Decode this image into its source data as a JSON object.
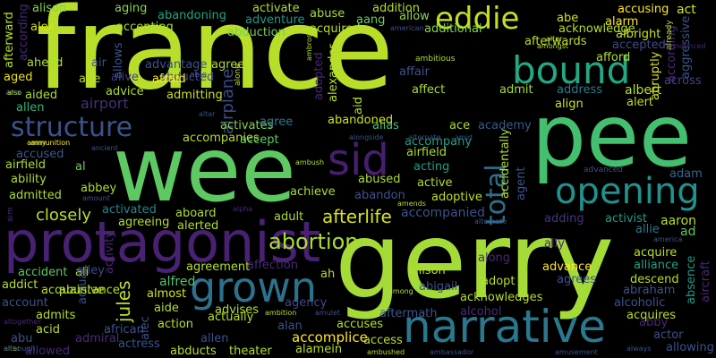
{
  "words": [
    {
      "text": "france",
      "color": "#b8de29"
    },
    {
      "text": "gerry",
      "color": "#a5db36"
    },
    {
      "text": "wee",
      "color": "#5ec962"
    },
    {
      "text": "pee",
      "color": "#44bf70"
    },
    {
      "text": "protagonist",
      "color": "#482173"
    },
    {
      "text": "narrative",
      "color": "#2a788e"
    },
    {
      "text": "grown",
      "color": "#2c728e"
    },
    {
      "text": "bound",
      "color": "#22a884"
    },
    {
      "text": "opening",
      "color": "#21918c"
    },
    {
      "text": "sid",
      "color": "#481f70"
    },
    {
      "text": "structure",
      "color": "#3b528b"
    },
    {
      "text": "eddie",
      "color": "#c2df23"
    },
    {
      "text": "total",
      "color": "#2c728e"
    },
    {
      "text": "abortion",
      "color": "#addc30"
    },
    {
      "text": "afterlife",
      "color": "#d8e219"
    },
    {
      "text": "closely",
      "color": "#b5de2b"
    },
    {
      "text": "accompanied",
      "color": "#3b528b"
    },
    {
      "text": "jules",
      "color": "#b8de29"
    },
    {
      "text": "airport",
      "color": "#472d7b"
    },
    {
      "text": "airplane",
      "color": "#3e4a89"
    },
    {
      "text": "accomplice",
      "color": "#fde725"
    },
    {
      "text": "accepting",
      "color": "#addc30"
    },
    {
      "text": "acknowledge",
      "color": "#b5de2b"
    },
    {
      "text": "afterwards",
      "color": "#bddf26"
    },
    {
      "text": "accepted",
      "color": "#3e4a89"
    },
    {
      "text": "abruptly",
      "color": "#d8e219"
    },
    {
      "text": "across",
      "color": "#414487"
    },
    {
      "text": "alcoholic",
      "color": "#3b528b"
    },
    {
      "text": "accident",
      "color": "#5ec962"
    },
    {
      "text": "alliance",
      "color": "#1fa187"
    },
    {
      "text": "alfred",
      "color": "#54c568"
    },
    {
      "text": "alison",
      "color": "#84d44b"
    },
    {
      "text": "aging",
      "color": "#86d549"
    },
    {
      "text": "abandoning",
      "color": "#20a486"
    },
    {
      "text": "activate",
      "color": "#addc30"
    },
    {
      "text": "abuse",
      "color": "#aadc32"
    },
    {
      "text": "addition",
      "color": "#b5de2b"
    },
    {
      "text": "accusing",
      "color": "#fde725"
    },
    {
      "text": "act",
      "color": "#d5e21a"
    },
    {
      "text": "alex",
      "color": "#d8e219"
    },
    {
      "text": "adventure",
      "color": "#1f9a8a"
    },
    {
      "text": "aang",
      "color": "#6ccd5a"
    },
    {
      "text": "allow",
      "color": "#8bd646"
    },
    {
      "text": "abe",
      "color": "#d2e21b"
    },
    {
      "text": "alarm",
      "color": "#fde725"
    },
    {
      "text": "albright",
      "color": "#cae11f"
    },
    {
      "text": "abduction",
      "color": "#73d056"
    },
    {
      "text": "acquired",
      "color": "#b5de2b"
    },
    {
      "text": "additional",
      "color": "#84d44b"
    },
    {
      "text": "afford",
      "color": "#b5de2b"
    },
    {
      "text": "affair",
      "color": "#3b528b"
    },
    {
      "text": "affect",
      "color": "#addc30"
    },
    {
      "text": "admit",
      "color": "#a8db34"
    },
    {
      "text": "address",
      "color": "#297b8e"
    },
    {
      "text": "albert",
      "color": "#b5de2b"
    },
    {
      "text": "alert",
      "color": "#c0df25"
    },
    {
      "text": "advantage",
      "color": "#3b528b"
    },
    {
      "text": "abducted",
      "color": "#3e4a89"
    },
    {
      "text": "align",
      "color": "#cde11d"
    },
    {
      "text": "afraid",
      "color": "#fde725"
    },
    {
      "text": "agreed",
      "color": "#addc30"
    },
    {
      "text": "admitting",
      "color": "#c8e020"
    },
    {
      "text": "aged",
      "color": "#e5e419"
    },
    {
      "text": "age",
      "color": "#bddf26"
    },
    {
      "text": "alive",
      "color": "#433e85"
    },
    {
      "text": "ahead",
      "color": "#addc30"
    },
    {
      "text": "aided",
      "color": "#aadc32"
    },
    {
      "text": "advice",
      "color": "#addc30"
    },
    {
      "text": "allen",
      "color": "#35b779"
    },
    {
      "text": "activates",
      "color": "#84d44b"
    },
    {
      "text": "agree",
      "color": "#2a788e"
    },
    {
      "text": "abandoned",
      "color": "#d0e11c"
    },
    {
      "text": "ace",
      "color": "#addc30"
    },
    {
      "text": "alias",
      "color": "#4ac16d"
    },
    {
      "text": "academy",
      "color": "#375a8c"
    },
    {
      "text": "accompanies",
      "color": "#b5de2b"
    },
    {
      "text": "accept",
      "color": "#5ec962"
    },
    {
      "text": "accompany",
      "color": "#1fa088"
    },
    {
      "text": "accused",
      "color": "#38588c"
    },
    {
      "text": "airfield",
      "color": "#addc30"
    },
    {
      "text": "al",
      "color": "#6ece58"
    },
    {
      "text": "ability",
      "color": "#addc30"
    },
    {
      "text": "acting",
      "color": "#1f9e89"
    },
    {
      "text": "abused",
      "color": "#addc30"
    },
    {
      "text": "active",
      "color": "#addc30"
    },
    {
      "text": "abbey",
      "color": "#addc30"
    },
    {
      "text": "achieve",
      "color": "#addc30"
    },
    {
      "text": "admitted",
      "color": "#addc30"
    },
    {
      "text": "abandon",
      "color": "#3b528b"
    },
    {
      "text": "adoptive",
      "color": "#c0df25"
    },
    {
      "text": "activated",
      "color": "#25848e"
    },
    {
      "text": "agreeing",
      "color": "#b5de2b"
    },
    {
      "text": "aboard",
      "color": "#addc30"
    },
    {
      "text": "alerted",
      "color": "#addc30"
    },
    {
      "text": "adult",
      "color": "#addc30"
    },
    {
      "text": "adding",
      "color": "#46337f"
    },
    {
      "text": "activist",
      "color": "#1f9a8a"
    },
    {
      "text": "aaron",
      "color": "#b5de2b"
    },
    {
      "text": "adam",
      "color": "#31688e"
    },
    {
      "text": "advanced",
      "color": "#3b528b"
    },
    {
      "text": "allie",
      "color": "#2a788e"
    },
    {
      "text": "ad",
      "color": "#5ec962"
    },
    {
      "text": "ally",
      "color": "#472d7b"
    },
    {
      "text": "acquire",
      "color": "#b5de2b"
    },
    {
      "text": "advance",
      "color": "#fde725"
    },
    {
      "text": "agrees",
      "color": "#3b528b"
    },
    {
      "text": "abigail",
      "color": "#3b528b"
    },
    {
      "text": "adopt",
      "color": "#b5de2b"
    },
    {
      "text": "acknowledges",
      "color": "#b5de2b"
    },
    {
      "text": "abraham",
      "color": "#3b528b"
    },
    {
      "text": "descend",
      "color": "#b5de2b"
    },
    {
      "text": "absence",
      "color": "#1f9a8a"
    },
    {
      "text": "agreement",
      "color": "#b5de2b"
    },
    {
      "text": "affection",
      "color": "#482878"
    },
    {
      "text": "ah",
      "color": "#b5de2b"
    },
    {
      "text": "allison",
      "color": "#b5de2b"
    },
    {
      "text": "along",
      "color": "#482878"
    },
    {
      "text": "alley",
      "color": "#3e4a89"
    },
    {
      "text": "abusive",
      "color": "#b5de2b"
    },
    {
      "text": "almost",
      "color": "#d8e219"
    },
    {
      "text": "ali",
      "color": "#b5de2b"
    },
    {
      "text": "acquaintance",
      "color": "#b5de2b"
    },
    {
      "text": "aide",
      "color": "#b5de2b"
    },
    {
      "text": "addict",
      "color": "#b5de2b"
    },
    {
      "text": "account",
      "color": "#3b528b"
    },
    {
      "text": "agency",
      "color": "#3e4a89"
    },
    {
      "text": "advises",
      "color": "#b5de2b"
    },
    {
      "text": "actually",
      "color": "#b5de2b"
    },
    {
      "text": "aftermath",
      "color": "#39568c"
    },
    {
      "text": "alcohol",
      "color": "#472d7b"
    },
    {
      "text": "admits",
      "color": "#b5de2b"
    },
    {
      "text": "actual",
      "color": "#3b528b"
    },
    {
      "text": "accuses",
      "color": "#b5de2b"
    },
    {
      "text": "action",
      "color": "#b5de2b"
    },
    {
      "text": "acid",
      "color": "#b5de2b"
    },
    {
      "text": "abu",
      "color": "#3b528b"
    },
    {
      "text": "admiral",
      "color": "#472d7b"
    },
    {
      "text": "african",
      "color": "#3b528b"
    },
    {
      "text": "actress",
      "color": "#3b528b"
    },
    {
      "text": "abducts",
      "color": "#b5de2b"
    },
    {
      "text": "theater",
      "color": "#b5de2b"
    },
    {
      "text": "allen",
      "color": "#3b528b"
    },
    {
      "text": "alan",
      "color": "#3b528b"
    },
    {
      "text": "alamein",
      "color": "#b5de2b"
    },
    {
      "text": "access",
      "color": "#b5de2b"
    },
    {
      "text": "allowed",
      "color": "#482878"
    },
    {
      "text": "acquires",
      "color": "#b5de2b"
    },
    {
      "text": "actor",
      "color": "#3b528b"
    },
    {
      "text": "abby",
      "color": "#482878"
    },
    {
      "text": "allowing",
      "color": "#3b528b"
    },
    {
      "text": "aid",
      "color": "#b5de2b"
    },
    {
      "text": "alexander",
      "color": "#b5de2b"
    },
    {
      "text": "adopted",
      "color": "#482878"
    },
    {
      "text": "air",
      "color": "#3b528b"
    },
    {
      "text": "allows",
      "color": "#3b528b"
    },
    {
      "text": "accepts",
      "color": "#3b528b"
    },
    {
      "text": "afterward",
      "color": "#b5de2b"
    },
    {
      "text": "according",
      "color": "#482878"
    },
    {
      "text": "aggressive",
      "color": "#3b528b"
    },
    {
      "text": "aircraft",
      "color": "#482878"
    },
    {
      "text": "activity",
      "color": "#482878"
    },
    {
      "text": "able",
      "color": "#3b528b"
    },
    {
      "text": "alone",
      "color": "#b5de2b"
    },
    {
      "text": "accidentally",
      "color": "#b5de2b"
    },
    {
      "text": "agent",
      "color": "#3b528b"
    },
    {
      "text": "alec",
      "color": "#3b528b"
    },
    {
      "text": "ambitious",
      "color": "#b5de2b"
    },
    {
      "text": "ambrose",
      "color": "#b5de2b"
    },
    {
      "text": "altar",
      "color": "#3b528b"
    },
    {
      "text": "ammunition",
      "color": "#fde725"
    },
    {
      "text": "amy",
      "color": "#b5de2b"
    },
    {
      "text": "ancient",
      "color": "#3b528b"
    },
    {
      "text": "ambush",
      "color": "#b5de2b"
    },
    {
      "text": "alongside",
      "color": "#3b528b"
    },
    {
      "text": "amid",
      "color": "#3b528b"
    },
    {
      "text": "amount",
      "color": "#3b528b"
    },
    {
      "text": "alpha",
      "color": "#482878"
    },
    {
      "text": "amends",
      "color": "#b5de2b"
    },
    {
      "text": "alternate",
      "color": "#3b528b"
    },
    {
      "text": "america",
      "color": "#3b528b"
    },
    {
      "text": "among",
      "color": "#b5de2b"
    },
    {
      "text": "ambition",
      "color": "#b5de2b"
    },
    {
      "text": "amulet",
      "color": "#3b528b"
    },
    {
      "text": "although",
      "color": "#3b528b"
    },
    {
      "text": "altogether",
      "color": "#482878"
    },
    {
      "text": "ambushed",
      "color": "#b5de2b"
    },
    {
      "text": "ambassador",
      "color": "#3b528b"
    },
    {
      "text": "amusement",
      "color": "#3b528b"
    },
    {
      "text": "always",
      "color": "#3b528b"
    },
    {
      "text": "alter",
      "color": "#b5de2b"
    },
    {
      "text": "amongst",
      "color": "#b5de2b"
    },
    {
      "text": "american",
      "color": "#3b528b"
    },
    {
      "text": "already",
      "color": "#b5de2b"
    },
    {
      "text": "announced",
      "color": "#482878"
    },
    {
      "text": "also",
      "color": "#b5de2b"
    },
    {
      "text": "ana",
      "color": "#3b528b"
    },
    {
      "text": "aim",
      "color": "#482878"
    }
  ]
}
